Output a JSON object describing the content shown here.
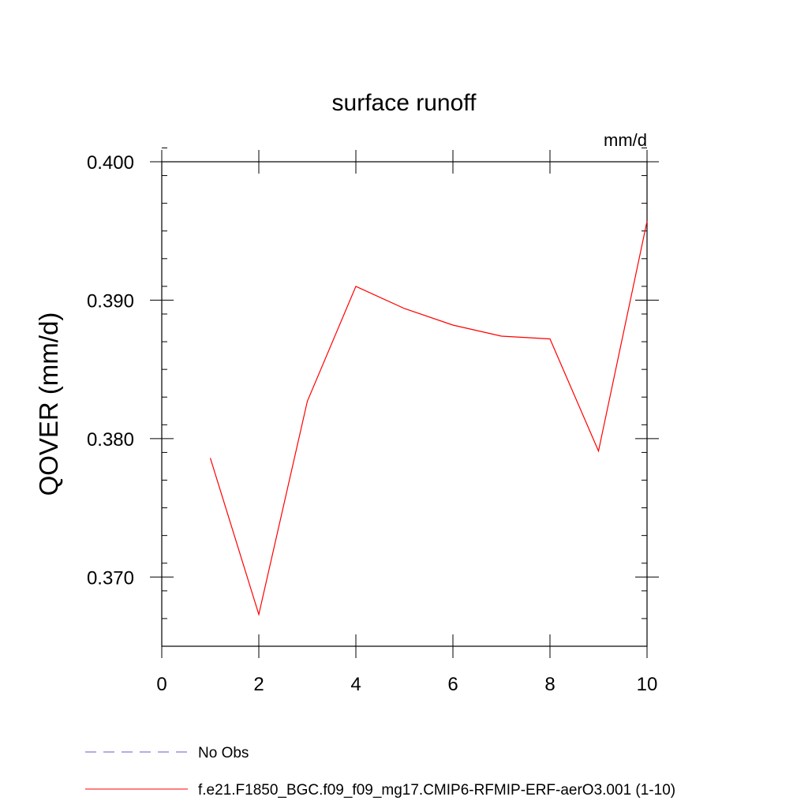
{
  "chart_data": {
    "type": "line",
    "title": "surface runoff",
    "units_label": "mm/d",
    "xlabel": "",
    "ylabel": "QOVER  (mm/d)",
    "xlim": [
      0,
      10
    ],
    "ylim": [
      0.365,
      0.4
    ],
    "x_ticks": [
      0,
      2,
      4,
      6,
      8,
      10
    ],
    "x_tick_labels": [
      "0",
      "2",
      "4",
      "6",
      "8",
      "10"
    ],
    "y_ticks": [
      0.37,
      0.38,
      0.39,
      0.4
    ],
    "y_tick_labels": [
      "0.370",
      "0.380",
      "0.390",
      "0.400"
    ],
    "grid": false,
    "legend_position": "bottom",
    "series": [
      {
        "name": "No Obs",
        "color": "#6a5acd",
        "style": "dashed",
        "x": [],
        "y": []
      },
      {
        "name": "f.e21.F1850_BGC.f09_f09_mg17.CMIP6-RFMIP-ERF-aerO3.001 (1-10)",
        "color": "#ff0000",
        "style": "solid",
        "x": [
          1,
          2,
          3,
          4,
          5,
          6,
          7,
          8,
          9,
          10
        ],
        "y": [
          0.3786,
          0.3673,
          0.3827,
          0.391,
          0.3894,
          0.3882,
          0.3874,
          0.3872,
          0.3791,
          0.3957
        ]
      }
    ]
  }
}
